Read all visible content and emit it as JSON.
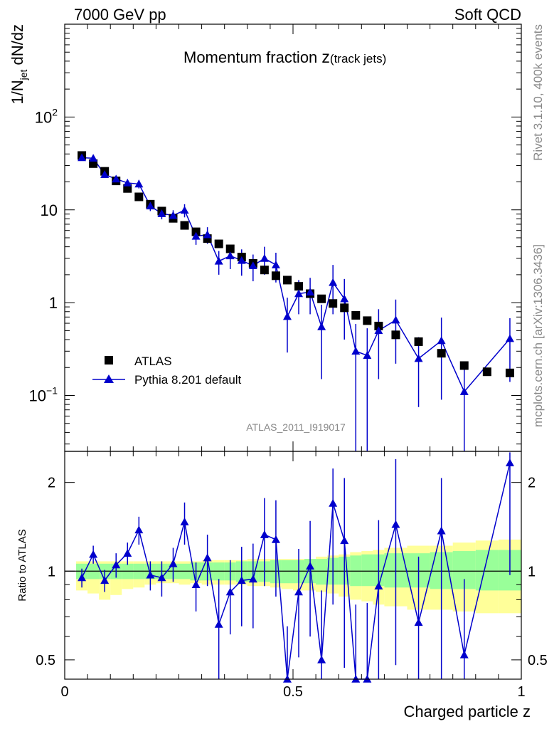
{
  "header": {
    "left": "7000 GeV pp",
    "right": "Soft QCD"
  },
  "side_labels": {
    "rivet": "Rivet 3.1.10,  400k events",
    "mcplots": "mcplots.cern.ch [arXiv:1306.3436]"
  },
  "chart_data": [
    {
      "type": "scatter",
      "title": "Momentum fraction ",
      "title_symbol": "z",
      "title_sub": "(track jets)",
      "ylabel_main": "1/N",
      "ylabel_sub": "jet",
      "ylabel_tail": " dN/dz",
      "analysis_label": "ATLAS_2011_I919017",
      "y_scale": "log",
      "xlim": [
        0,
        1
      ],
      "ylim": [
        0.025,
        1000
      ],
      "y_ticks": [
        {
          "value": 0.1,
          "label": "10",
          "sup": "−1"
        },
        {
          "value": 1,
          "label": "1",
          "sup": ""
        },
        {
          "value": 10,
          "label": "10",
          "sup": ""
        },
        {
          "value": 100,
          "label": "10",
          "sup": "2"
        }
      ],
      "legend": {
        "position": "bottom-left"
      },
      "series": [
        {
          "name": "ATLAS",
          "marker": "square",
          "color": "#000000",
          "x": [
            0.0375,
            0.0625,
            0.0875,
            0.1125,
            0.1375,
            0.1625,
            0.1875,
            0.2125,
            0.2375,
            0.2625,
            0.2875,
            0.3125,
            0.3375,
            0.3625,
            0.3875,
            0.4125,
            0.4375,
            0.4625,
            0.4875,
            0.5125,
            0.5375,
            0.5625,
            0.5875,
            0.6125,
            0.6375,
            0.6625,
            0.6875,
            0.725,
            0.775,
            0.825,
            0.875,
            0.925,
            0.975
          ],
          "y": [
            38.5,
            31.5,
            26.0,
            20.5,
            17.0,
            13.8,
            11.5,
            9.7,
            8.1,
            6.8,
            5.8,
            4.9,
            4.3,
            3.8,
            3.1,
            2.65,
            2.25,
            1.95,
            1.75,
            1.5,
            1.25,
            1.1,
            0.98,
            0.88,
            0.73,
            0.64,
            0.56,
            0.45,
            0.38,
            0.285,
            0.21,
            0.18,
            0.175
          ]
        },
        {
          "name": "Pythia 8.201 default",
          "marker": "triangle",
          "color": "#0000cc",
          "x": [
            0.0375,
            0.0625,
            0.0875,
            0.1125,
            0.1375,
            0.1625,
            0.1875,
            0.2125,
            0.2375,
            0.2625,
            0.2875,
            0.3125,
            0.3375,
            0.3625,
            0.3875,
            0.4125,
            0.4375,
            0.4625,
            0.4875,
            0.5125,
            0.5375,
            0.5625,
            0.5875,
            0.6125,
            0.6375,
            0.6625,
            0.6875,
            0.725,
            0.775,
            0.825,
            0.875,
            0.975
          ],
          "y": [
            36.5,
            36.0,
            24.0,
            21.5,
            19.5,
            19.0,
            11.0,
            9.1,
            8.7,
            9.9,
            5.2,
            5.4,
            2.8,
            3.2,
            2.85,
            2.5,
            3.0,
            2.55,
            0.71,
            1.25,
            1.3,
            0.55,
            1.65,
            1.1,
            0.3,
            0.27,
            0.5,
            0.65,
            0.25,
            0.39,
            0.11,
            0.41
          ],
          "yerr_low": [
            2.5,
            2.5,
            2.0,
            1.8,
            1.8,
            2.0,
            1.3,
            1.2,
            1.2,
            1.6,
            1.0,
            1.1,
            0.8,
            0.9,
            0.9,
            0.8,
            1.0,
            0.9,
            0.42,
            0.5,
            0.55,
            0.4,
            0.9,
            0.7,
            0.29,
            0.26,
            0.35,
            0.43,
            0.175,
            0.3,
            0.087,
            0.27
          ],
          "yerr_high": [
            2.5,
            2.5,
            2.0,
            1.8,
            1.8,
            2.0,
            1.3,
            1.2,
            1.2,
            1.6,
            1.0,
            1.1,
            0.8,
            0.9,
            0.9,
            0.8,
            1.0,
            0.9,
            0.42,
            0.5,
            0.55,
            0.4,
            0.9,
            0.7,
            0.29,
            0.26,
            0.35,
            0.43,
            0.175,
            0.3,
            0.087,
            0.27
          ]
        }
      ]
    },
    {
      "type": "scatter",
      "ylabel": "Ratio to ATLAS",
      "xlabel": "Charged particle z",
      "xlim": [
        0,
        1
      ],
      "ylim": [
        0.43,
        2.55
      ],
      "y_scale": "log",
      "x_ticks": [
        0,
        0.5,
        1
      ],
      "x_tick_labels": [
        "0",
        "0.5",
        "1"
      ],
      "y_ticks": [
        0.5,
        1,
        2
      ],
      "y_tick_labels": [
        "0.5",
        "1",
        "2"
      ],
      "reference_line": 1,
      "uncertainty_bands": {
        "edges": [
          0.025,
          0.05,
          0.075,
          0.1,
          0.125,
          0.15,
          0.175,
          0.2,
          0.225,
          0.25,
          0.275,
          0.3,
          0.325,
          0.35,
          0.375,
          0.4,
          0.425,
          0.45,
          0.475,
          0.5,
          0.525,
          0.55,
          0.575,
          0.6,
          0.625,
          0.65,
          0.675,
          0.7,
          0.75,
          0.8,
          0.85,
          0.9,
          0.95,
          1.0
        ],
        "inner_lo": [
          0.94,
          0.94,
          0.94,
          0.94,
          0.94,
          0.94,
          0.94,
          0.94,
          0.94,
          0.94,
          0.93,
          0.93,
          0.93,
          0.93,
          0.92,
          0.92,
          0.92,
          0.91,
          0.91,
          0.91,
          0.91,
          0.9,
          0.9,
          0.9,
          0.89,
          0.89,
          0.89,
          0.88,
          0.88,
          0.87,
          0.87,
          0.86,
          0.86
        ],
        "inner_hi": [
          1.06,
          1.06,
          1.06,
          1.06,
          1.06,
          1.06,
          1.06,
          1.06,
          1.06,
          1.06,
          1.07,
          1.07,
          1.07,
          1.07,
          1.08,
          1.08,
          1.08,
          1.09,
          1.09,
          1.09,
          1.1,
          1.1,
          1.11,
          1.12,
          1.13,
          1.14,
          1.14,
          1.15,
          1.15,
          1.16,
          1.17,
          1.18,
          1.18
        ],
        "outer_lo": [
          0.86,
          0.84,
          0.8,
          0.83,
          0.87,
          0.88,
          0.9,
          0.91,
          0.91,
          0.9,
          0.91,
          0.9,
          0.9,
          0.9,
          0.9,
          0.89,
          0.89,
          0.88,
          0.87,
          0.86,
          0.86,
          0.85,
          0.84,
          0.82,
          0.8,
          0.79,
          0.77,
          0.76,
          0.74,
          0.74,
          0.73,
          0.72,
          0.72
        ],
        "outer_hi": [
          1.08,
          1.08,
          1.08,
          1.08,
          1.08,
          1.08,
          1.08,
          1.08,
          1.08,
          1.08,
          1.08,
          1.09,
          1.09,
          1.09,
          1.09,
          1.1,
          1.1,
          1.1,
          1.1,
          1.1,
          1.1,
          1.12,
          1.13,
          1.14,
          1.16,
          1.17,
          1.18,
          1.2,
          1.22,
          1.22,
          1.25,
          1.27,
          1.28
        ]
      },
      "series": [
        {
          "name": "Pythia 8.201 default",
          "marker": "triangle",
          "color": "#0000cc",
          "x": [
            0.0375,
            0.0625,
            0.0875,
            0.1125,
            0.1375,
            0.1625,
            0.1875,
            0.2125,
            0.2375,
            0.2625,
            0.2875,
            0.3125,
            0.3375,
            0.3625,
            0.3875,
            0.4125,
            0.4375,
            0.4625,
            0.4875,
            0.5125,
            0.5375,
            0.5625,
            0.5875,
            0.6125,
            0.6375,
            0.6625,
            0.6875,
            0.725,
            0.775,
            0.825,
            0.875,
            0.975
          ],
          "y": [
            0.95,
            1.14,
            0.93,
            1.05,
            1.15,
            1.38,
            0.97,
            0.95,
            1.06,
            1.47,
            0.9,
            1.11,
            0.66,
            0.85,
            0.93,
            0.94,
            1.33,
            1.28,
            0.41,
            0.85,
            1.04,
            0.5,
            1.7,
            1.27,
            0.41,
            0.42,
            0.89,
            1.44,
            0.67,
            1.37,
            0.52,
            2.33
          ],
          "yerr_low": [
            0.07,
            0.08,
            0.08,
            0.1,
            0.1,
            0.15,
            0.11,
            0.13,
            0.14,
            0.24,
            0.17,
            0.22,
            0.28,
            0.24,
            0.28,
            0.3,
            0.44,
            0.46,
            0.24,
            0.34,
            0.44,
            0.36,
            0.93,
            0.8,
            0.36,
            0.36,
            0.6,
            0.96,
            0.45,
            1.05,
            0.42,
            1.36
          ],
          "yerr_high": [
            0.07,
            0.08,
            0.08,
            0.1,
            0.1,
            0.15,
            0.11,
            0.13,
            0.14,
            0.24,
            0.17,
            0.22,
            0.28,
            0.24,
            0.28,
            0.3,
            0.44,
            0.46,
            0.24,
            0.34,
            0.44,
            0.36,
            0.53,
            0.8,
            0.36,
            0.36,
            0.6,
            0.96,
            0.45,
            0.7,
            0.42,
            0.2
          ]
        }
      ]
    }
  ]
}
